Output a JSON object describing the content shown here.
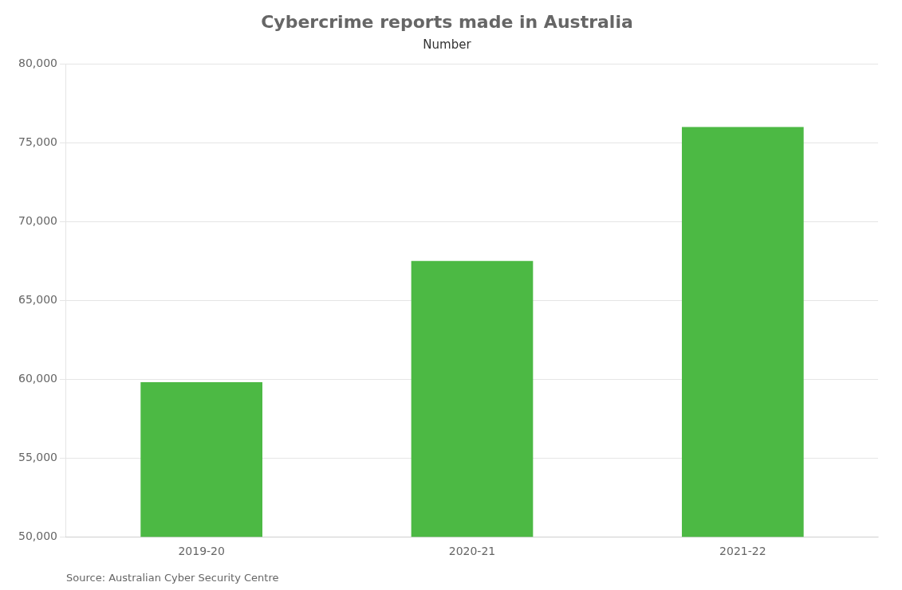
{
  "chart_data": {
    "type": "bar",
    "title": "Cybercrime reports made in Australia",
    "subtitle": "Number",
    "source": "Source: Australian Cyber Security Centre",
    "categories": [
      "2019-20",
      "2020-21",
      "2021-22"
    ],
    "values": [
      59806,
      67500,
      76000
    ],
    "color": "#4cb944",
    "ylim": [
      50000,
      80000
    ],
    "yticks": [
      {
        "value": 50000,
        "label": "50,000"
      },
      {
        "value": 55000,
        "label": "55,000"
      },
      {
        "value": 60000,
        "label": "60,000"
      },
      {
        "value": 65000,
        "label": "65,000"
      },
      {
        "value": 70000,
        "label": "70,000"
      },
      {
        "value": 75000,
        "label": "75,000"
      },
      {
        "value": 80000,
        "label": "80,000"
      }
    ],
    "grid": true
  }
}
